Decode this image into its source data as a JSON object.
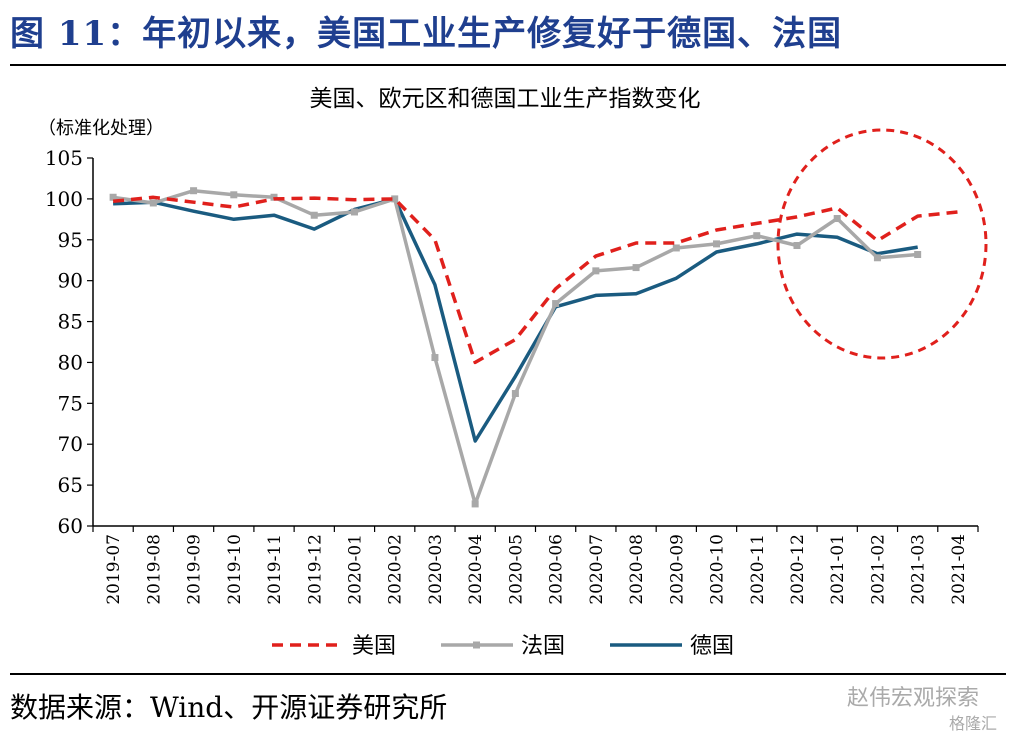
{
  "header": {
    "title": "图 11：年初以来，美国工业生产修复好于德国、法国"
  },
  "footer": {
    "source": "数据来源：Wind、开源证券研究所",
    "watermark": "赵伟宏观探索",
    "watermark_brand": "格隆汇"
  },
  "colors": {
    "title": "#1f3f8f",
    "us": "#e0201c",
    "fr": "#a8a8a8",
    "de": "#1a5b80",
    "highlight": "#e0201c"
  },
  "chart_data": {
    "type": "line",
    "title": "美国、欧元区和德国工业生产指数变化",
    "ylabel": "（标准化处理）",
    "xlabel": "",
    "ylim": [
      60,
      105
    ],
    "yticks": [
      60,
      65,
      70,
      75,
      80,
      85,
      90,
      95,
      100,
      105
    ],
    "categories": [
      "2019-07",
      "2019-08",
      "2019-09",
      "2019-10",
      "2019-11",
      "2019-12",
      "2020-01",
      "2020-02",
      "2020-03",
      "2020-04",
      "2020-05",
      "2020-06",
      "2020-07",
      "2020-08",
      "2020-09",
      "2020-10",
      "2020-11",
      "2020-12",
      "2021-01",
      "2021-02",
      "2021-03",
      "2021-04"
    ],
    "grid": false,
    "legend_position": "bottom",
    "series": [
      {
        "name": "美国",
        "style": "dashed",
        "color": "#e0201c",
        "values": [
          99.7,
          100.2,
          99.6,
          99.0,
          100.0,
          100.1,
          99.9,
          100.0,
          95.0,
          80.0,
          82.8,
          89.0,
          93.0,
          94.6,
          94.6,
          96.2,
          97.0,
          97.8,
          98.9,
          94.9,
          97.9,
          98.4
        ]
      },
      {
        "name": "法国",
        "style": "solid-marker",
        "color": "#a8a8a8",
        "values": [
          100.2,
          99.5,
          101.0,
          100.5,
          100.2,
          98.0,
          98.4,
          100.0,
          80.6,
          62.7,
          76.2,
          87.2,
          91.2,
          91.6,
          94.0,
          94.5,
          95.5,
          94.3,
          97.6,
          92.8,
          93.2,
          null
        ]
      },
      {
        "name": "德国",
        "style": "solid",
        "color": "#1a5b80",
        "values": [
          99.4,
          99.6,
          98.5,
          97.5,
          98.0,
          96.3,
          98.7,
          100.0,
          89.5,
          70.4,
          78.3,
          86.8,
          88.2,
          88.4,
          90.3,
          93.5,
          94.5,
          95.7,
          95.3,
          93.3,
          94.1,
          null
        ]
      }
    ]
  }
}
